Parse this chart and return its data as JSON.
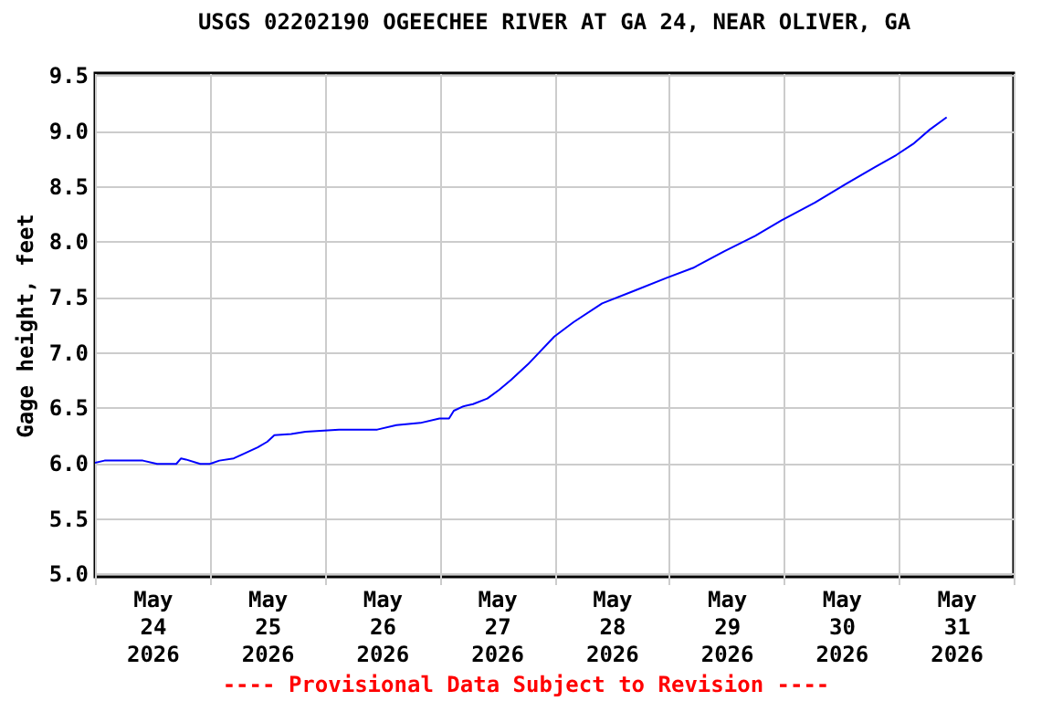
{
  "chart_data": {
    "type": "line",
    "title": "USGS 02202190 OGEECHEE RIVER AT GA 24, NEAR OLIVER, GA",
    "ylabel": "Gage height, feet",
    "annotations": [
      "---- Provisional Data Subject to Revision ----"
    ],
    "x": [
      "2026-05-24T00:00",
      "2026-05-24T02:00",
      "2026-05-24T10:00",
      "2026-05-24T13:00",
      "2026-05-24T17:00",
      "2026-05-24T18:00",
      "2026-05-24T19:00",
      "2026-05-24T22:00",
      "2026-05-25T00:00",
      "2026-05-25T02:00",
      "2026-05-25T05:00",
      "2026-05-25T07:00",
      "2026-05-25T10:00",
      "2026-05-25T12:00",
      "2026-05-25T13:30",
      "2026-05-25T17:00",
      "2026-05-25T20:00",
      "2026-05-26T03:00",
      "2026-05-26T11:00",
      "2026-05-26T15:00",
      "2026-05-26T20:00",
      "2026-05-27T00:00",
      "2026-05-27T02:00",
      "2026-05-27T03:00",
      "2026-05-27T05:00",
      "2026-05-27T07:00",
      "2026-05-27T10:00",
      "2026-05-27T12:30",
      "2026-05-27T15:00",
      "2026-05-27T18:30",
      "2026-05-28T00:00",
      "2026-05-28T04:00",
      "2026-05-28T10:00",
      "2026-05-28T16:30",
      "2026-05-28T23:30",
      "2026-05-29T05:00",
      "2026-05-29T11:30",
      "2026-05-29T18:00",
      "2026-05-29T23:30",
      "2026-05-30T06:30",
      "2026-05-30T13:00",
      "2026-05-30T19:00",
      "2026-05-30T23:30",
      "2026-05-31T03:00",
      "2026-05-31T06:30",
      "2026-05-31T10:00"
    ],
    "series": [
      {
        "color": "#0000ff",
        "values": [
          6.0,
          6.02,
          6.02,
          5.99,
          5.99,
          6.04,
          6.03,
          5.99,
          5.99,
          6.02,
          6.04,
          6.08,
          6.14,
          6.19,
          6.25,
          6.26,
          6.28,
          6.3,
          6.3,
          6.34,
          6.36,
          6.4,
          6.4,
          6.47,
          6.51,
          6.53,
          6.58,
          6.66,
          6.75,
          6.89,
          7.14,
          7.27,
          7.44,
          7.55,
          7.67,
          7.76,
          7.91,
          8.05,
          8.19,
          8.35,
          8.52,
          8.67,
          8.78,
          8.88,
          9.01,
          9.12
        ]
      }
    ],
    "xlim": [
      "2026-05-24T00:00",
      "2026-06-01T00:00"
    ],
    "xticks": [
      {
        "value": "2026-05-24T00:00",
        "label": null
      },
      {
        "value": "2026-05-24T12:00",
        "label": "May\n24\n2026"
      },
      {
        "value": "2026-05-25T00:00",
        "label": null
      },
      {
        "value": "2026-05-25T12:00",
        "label": "May\n25\n2026"
      },
      {
        "value": "2026-05-26T00:00",
        "label": null
      },
      {
        "value": "2026-05-26T12:00",
        "label": "May\n26\n2026"
      },
      {
        "value": "2026-05-27T00:00",
        "label": null
      },
      {
        "value": "2026-05-27T12:00",
        "label": "May\n27\n2026"
      },
      {
        "value": "2026-05-28T00:00",
        "label": null
      },
      {
        "value": "2026-05-28T12:00",
        "label": "May\n28\n2026"
      },
      {
        "value": "2026-05-29T00:00",
        "label": null
      },
      {
        "value": "2026-05-29T12:00",
        "label": "May\n29\n2026"
      },
      {
        "value": "2026-05-30T00:00",
        "label": null
      },
      {
        "value": "2026-05-30T12:00",
        "label": "May\n30\n2026"
      },
      {
        "value": "2026-05-31T00:00",
        "label": null
      },
      {
        "value": "2026-05-31T12:00",
        "label": "May\n31\n2026"
      },
      {
        "value": "2026-06-01T00:00",
        "label": null
      }
    ],
    "ylim": [
      4.97,
      9.52
    ],
    "yticks": [
      {
        "value": 5,
        "label": "5.0"
      },
      {
        "value": 5.5,
        "label": "5.5"
      },
      {
        "value": 6,
        "label": "6.0"
      },
      {
        "value": 6.5,
        "label": "6.5"
      },
      {
        "value": 7,
        "label": "7.0"
      },
      {
        "value": 7.5,
        "label": "7.5"
      },
      {
        "value": 8,
        "label": "8.0"
      },
      {
        "value": 8.5,
        "label": "8.5"
      },
      {
        "value": 9,
        "label": "9.0"
      },
      {
        "value": 9.5,
        "label": "9.5"
      }
    ],
    "grid": true,
    "line_style": "solid",
    "marker": "none"
  }
}
